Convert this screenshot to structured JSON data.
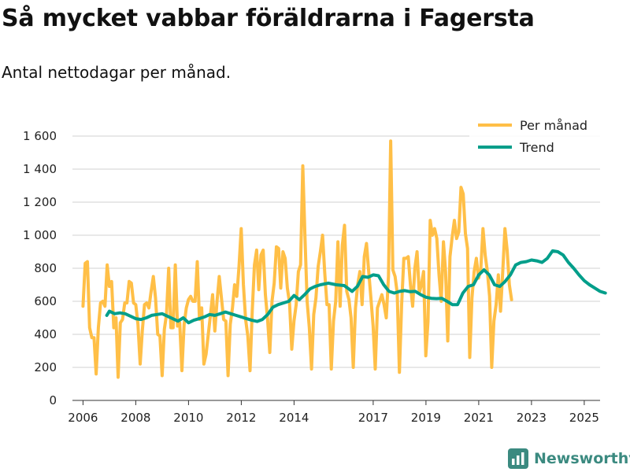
{
  "title": "Så mycket vabbar föräldrarna i Fagersta",
  "subtitle": "Antal nettodagar per månad.",
  "brand": {
    "name": "Newsworthy",
    "color": "#3b8a80"
  },
  "colors": {
    "per_month": "#ffbf47",
    "trend": "#009e8a",
    "grid": "#d9d9d9",
    "axis": "#333333"
  },
  "chart_data": {
    "type": "line",
    "title": "Så mycket vabbar föräldrarna i Fagersta",
    "subtitle": "Antal nettodagar per månad.",
    "xlabel": "",
    "ylabel": "",
    "xlim": [
      2005.6,
      2025.6
    ],
    "ylim": [
      0,
      1600
    ],
    "grid": true,
    "legend_position": "top-right",
    "x_ticks": [
      2006,
      2008,
      2010,
      2012,
      2014,
      2017,
      2019,
      2021,
      2023,
      2025
    ],
    "x_tick_labels": [
      "2006",
      "2008",
      "2010",
      "2012",
      "2014",
      "2017",
      "2019",
      "2021",
      "2023",
      "2025"
    ],
    "y_ticks": [
      0,
      200,
      400,
      600,
      800,
      1000,
      1200,
      1400,
      1600
    ],
    "y_tick_labels": [
      "0",
      "200",
      "400",
      "600",
      "800",
      "1 000",
      "1 200",
      "1 400",
      "1 600"
    ],
    "series": [
      {
        "name": "Per månad",
        "color": "#ffbf47",
        "start": 2006.0,
        "step": 0.0833,
        "values": [
          570,
          830,
          840,
          440,
          380,
          380,
          160,
          440,
          590,
          600,
          570,
          820,
          690,
          720,
          440,
          500,
          140,
          470,
          490,
          590,
          590,
          720,
          710,
          590,
          580,
          460,
          220,
          420,
          580,
          590,
          560,
          660,
          750,
          620,
          400,
          390,
          150,
          430,
          520,
          800,
          440,
          440,
          820,
          450,
          470,
          180,
          460,
          560,
          610,
          630,
          600,
          600,
          840,
          490,
          560,
          220,
          280,
          400,
          520,
          640,
          420,
          600,
          750,
          620,
          490,
          480,
          150,
          460,
          560,
          700,
          630,
          810,
          1040,
          700,
          490,
          390,
          180,
          540,
          820,
          910,
          670,
          880,
          910,
          640,
          490,
          290,
          600,
          710,
          930,
          920,
          680,
          900,
          860,
          680,
          590,
          310,
          480,
          580,
          780,
          820,
          1420,
          1000,
          600,
          440,
          190,
          520,
          620,
          810,
          900,
          1000,
          770,
          580,
          580,
          190,
          480,
          600,
          960,
          570,
          940,
          1060,
          660,
          610,
          500,
          200,
          560,
          700,
          780,
          580,
          870,
          950,
          780,
          620,
          450,
          190,
          560,
          600,
          640,
          580,
          500,
          750,
          1570,
          790,
          750,
          650,
          170,
          580,
          860,
          860,
          870,
          700,
          570,
          800,
          900,
          650,
          700,
          780,
          270,
          480,
          1090,
          1000,
          1040,
          980,
          760,
          600,
          960,
          780,
          360,
          870,
          990,
          1090,
          980,
          1020,
          1290,
          1250,
          1010,
          920,
          260,
          620,
          780,
          860,
          740,
          790,
          1040,
          880,
          780,
          630,
          200,
          480,
          580,
          760,
          540,
          780,
          1040,
          910,
          700,
          610
        ]
      },
      {
        "name": "Trend",
        "color": "#009e8a",
        "points": [
          [
            2006.9,
            515
          ],
          [
            2007.0,
            540
          ],
          [
            2007.2,
            525
          ],
          [
            2007.4,
            530
          ],
          [
            2007.6,
            525
          ],
          [
            2007.8,
            510
          ],
          [
            2008.0,
            495
          ],
          [
            2008.2,
            490
          ],
          [
            2008.4,
            500
          ],
          [
            2008.6,
            515
          ],
          [
            2008.8,
            520
          ],
          [
            2009.0,
            525
          ],
          [
            2009.2,
            510
          ],
          [
            2009.4,
            495
          ],
          [
            2009.6,
            480
          ],
          [
            2009.8,
            500
          ],
          [
            2010.0,
            470
          ],
          [
            2010.2,
            485
          ],
          [
            2010.4,
            495
          ],
          [
            2010.6,
            505
          ],
          [
            2010.8,
            520
          ],
          [
            2011.0,
            515
          ],
          [
            2011.2,
            525
          ],
          [
            2011.4,
            535
          ],
          [
            2011.6,
            525
          ],
          [
            2011.8,
            515
          ],
          [
            2012.0,
            505
          ],
          [
            2012.2,
            495
          ],
          [
            2012.4,
            485
          ],
          [
            2012.6,
            478
          ],
          [
            2012.8,
            490
          ],
          [
            2013.0,
            520
          ],
          [
            2013.2,
            565
          ],
          [
            2013.4,
            580
          ],
          [
            2013.6,
            590
          ],
          [
            2013.8,
            600
          ],
          [
            2014.0,
            635
          ],
          [
            2014.2,
            610
          ],
          [
            2014.4,
            640
          ],
          [
            2014.6,
            675
          ],
          [
            2014.8,
            690
          ],
          [
            2015.0,
            700
          ],
          [
            2015.3,
            710
          ],
          [
            2015.6,
            700
          ],
          [
            2015.9,
            695
          ],
          [
            2016.2,
            660
          ],
          [
            2016.4,
            690
          ],
          [
            2016.6,
            750
          ],
          [
            2016.8,
            745
          ],
          [
            2017.0,
            760
          ],
          [
            2017.2,
            755
          ],
          [
            2017.4,
            700
          ],
          [
            2017.6,
            660
          ],
          [
            2017.8,
            650
          ],
          [
            2018.0,
            660
          ],
          [
            2018.2,
            665
          ],
          [
            2018.4,
            658
          ],
          [
            2018.6,
            660
          ],
          [
            2018.8,
            640
          ],
          [
            2019.0,
            625
          ],
          [
            2019.2,
            618
          ],
          [
            2019.4,
            616
          ],
          [
            2019.6,
            618
          ],
          [
            2019.8,
            600
          ],
          [
            2020.0,
            580
          ],
          [
            2020.2,
            580
          ],
          [
            2020.4,
            650
          ],
          [
            2020.6,
            690
          ],
          [
            2020.8,
            700
          ],
          [
            2021.0,
            760
          ],
          [
            2021.2,
            790
          ],
          [
            2021.4,
            760
          ],
          [
            2021.6,
            700
          ],
          [
            2021.8,
            690
          ],
          [
            2022.0,
            720
          ],
          [
            2022.2,
            760
          ],
          [
            2022.4,
            820
          ],
          [
            2022.6,
            835
          ],
          [
            2022.8,
            840
          ],
          [
            2023.0,
            850
          ],
          [
            2023.2,
            845
          ],
          [
            2023.4,
            835
          ],
          [
            2023.6,
            860
          ],
          [
            2023.8,
            905
          ],
          [
            2024.0,
            900
          ],
          [
            2024.2,
            880
          ],
          [
            2024.4,
            835
          ],
          [
            2024.6,
            800
          ],
          [
            2024.8,
            760
          ],
          [
            2025.0,
            725
          ],
          [
            2025.2,
            700
          ],
          [
            2025.4,
            680
          ],
          [
            2025.6,
            660
          ],
          [
            2025.8,
            650
          ]
        ]
      }
    ]
  }
}
